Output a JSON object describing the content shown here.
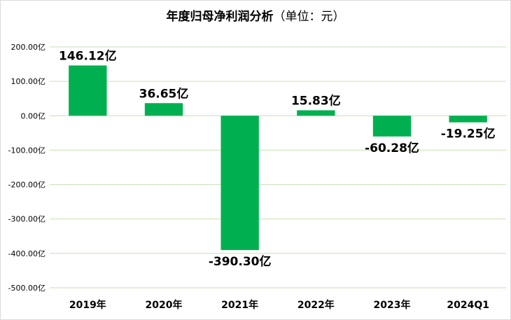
{
  "chart_data": {
    "type": "bar",
    "title": "年度归母净利润分析",
    "subtitle": "（单位：元）",
    "categories": [
      "2019年",
      "2020年",
      "2021年",
      "2022年",
      "2023年",
      "2024Q1"
    ],
    "values": [
      146.12,
      36.65,
      -390.3,
      15.83,
      -60.28,
      -19.25
    ],
    "data_labels": [
      "146.12亿",
      "36.65亿",
      "-390.30亿",
      "15.83亿",
      "-60.28亿",
      "-19.25亿"
    ],
    "ylim": [
      -500,
      200
    ],
    "y_ticks": [
      200,
      100,
      0,
      -100,
      -200,
      -300,
      -400,
      -500
    ],
    "y_tick_labels": [
      "200.00亿",
      "100.00亿",
      "0.00亿",
      "-100.00亿",
      "-200.00亿",
      "-300.00亿",
      "-400.00亿",
      "-500.00亿"
    ],
    "xlabel": "",
    "ylabel": "",
    "grid": true,
    "bar_color": "#00b050",
    "grid_color": "#c6e0b4"
  }
}
